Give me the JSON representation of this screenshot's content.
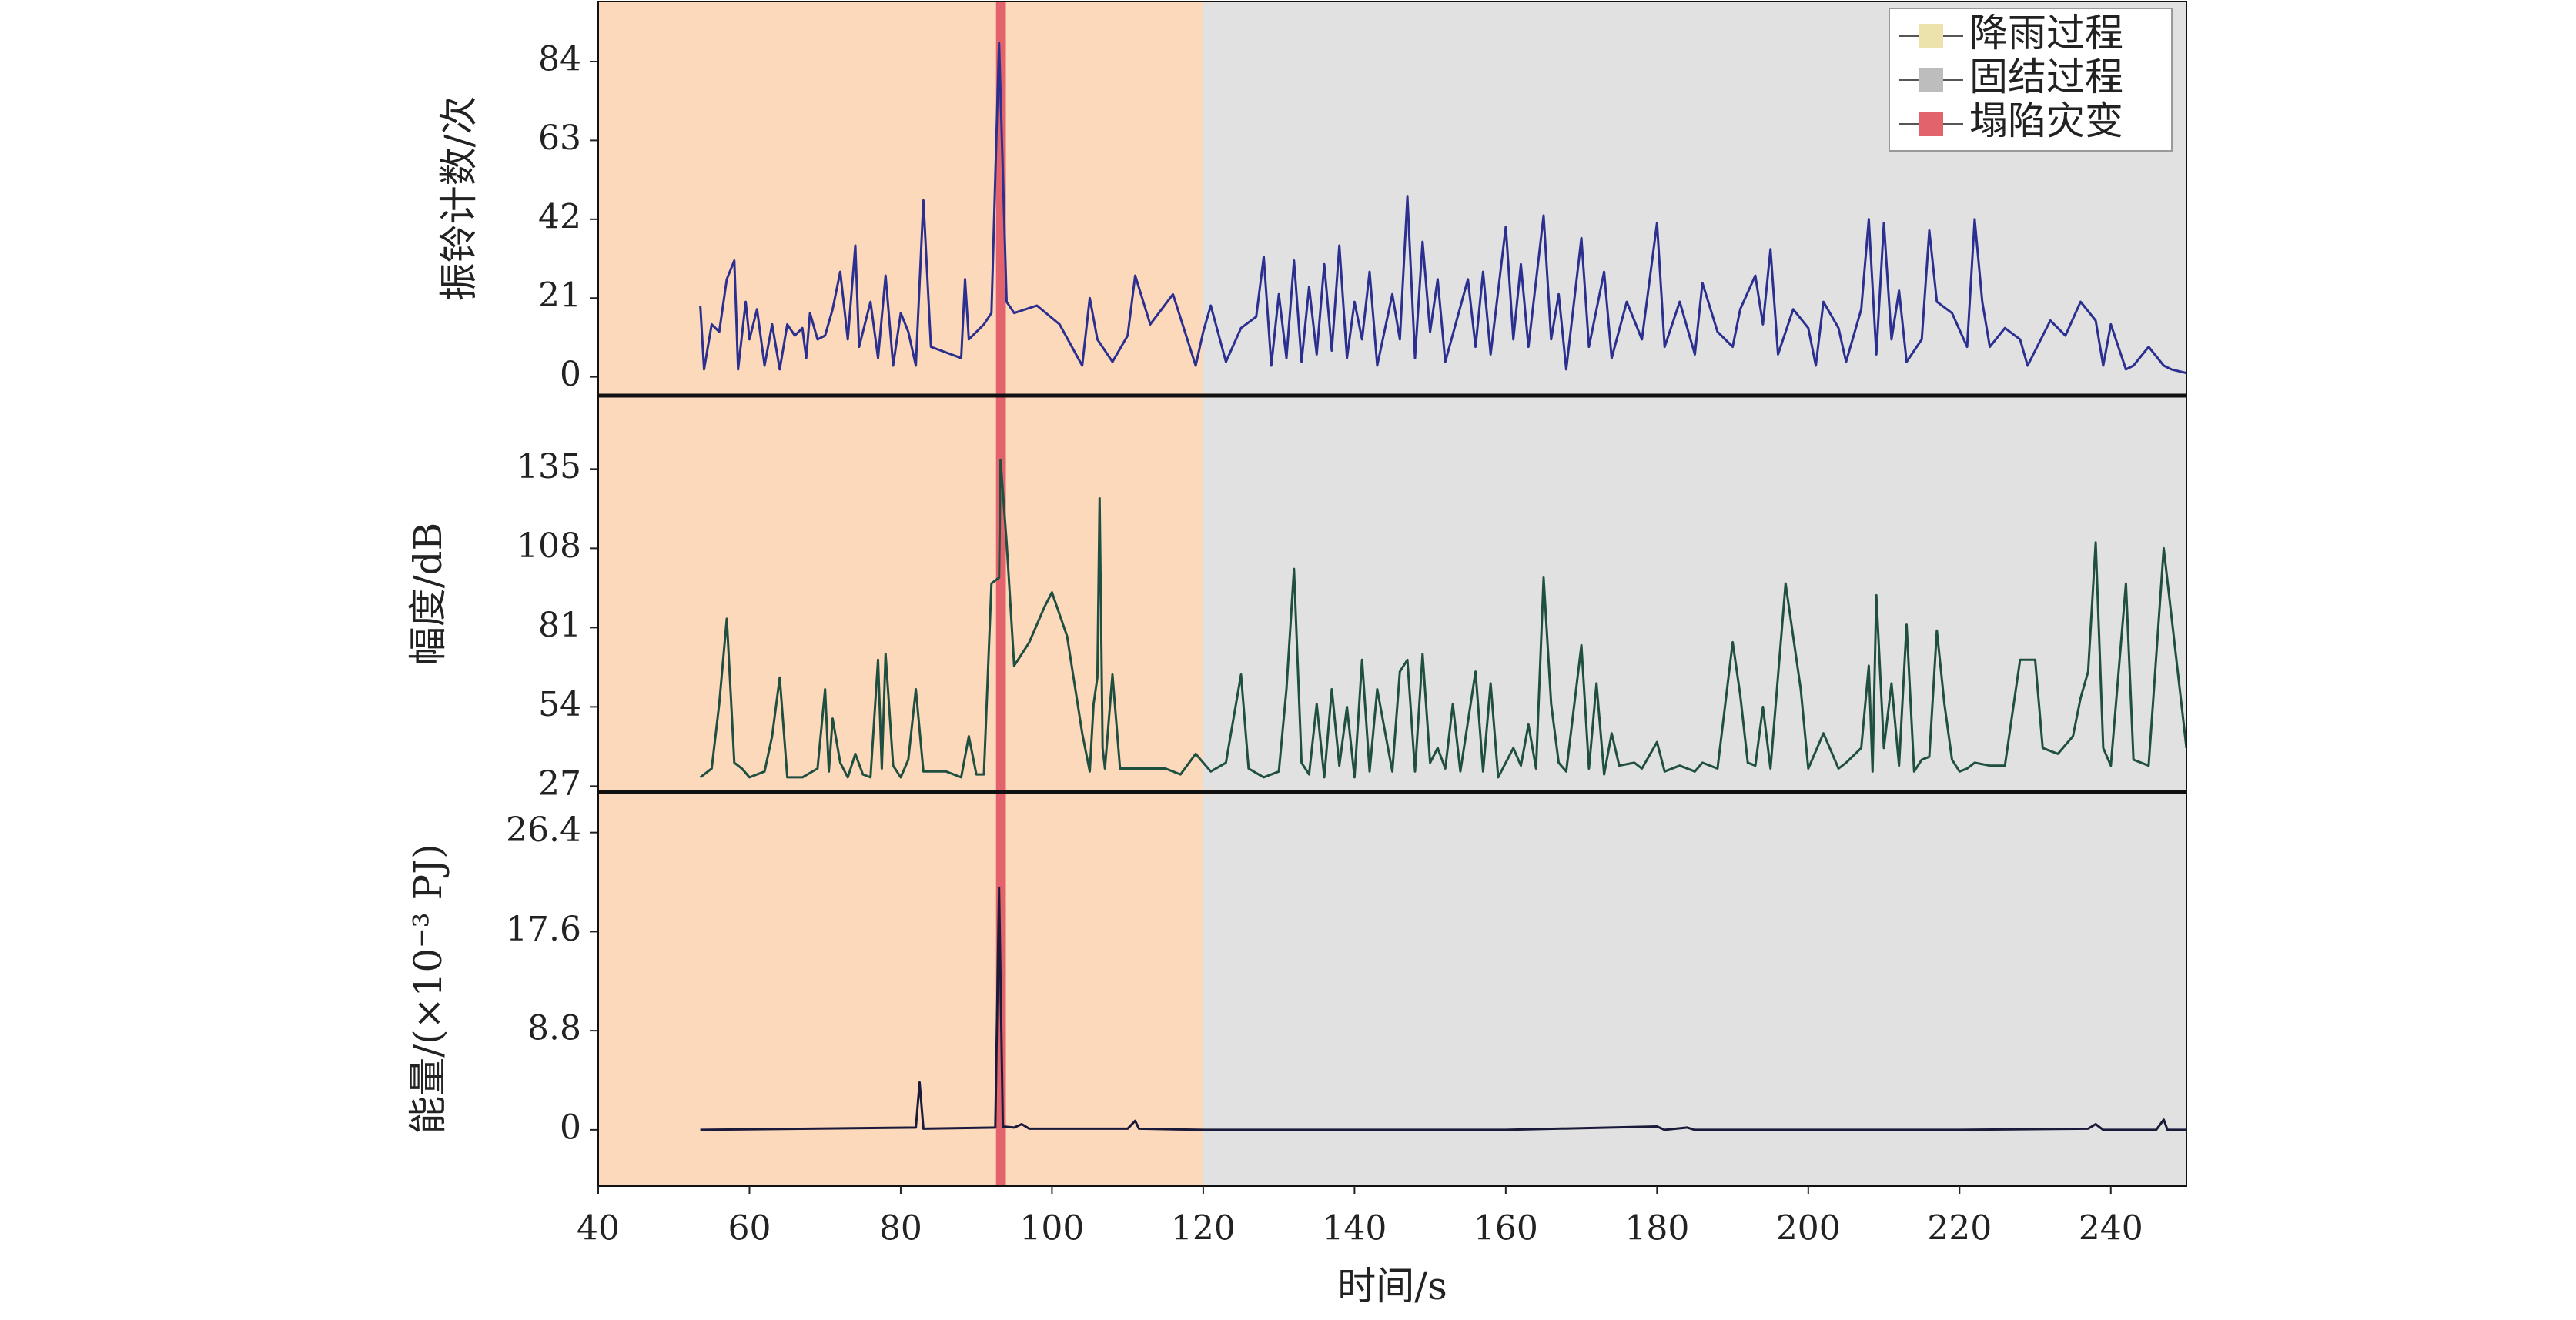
{
  "chart_data": [
    {
      "type": "line",
      "ylabel": "振铃计数/次",
      "xlim": [
        40,
        250
      ],
      "ylim": [
        -5,
        100
      ],
      "yticks": [
        0,
        21,
        42,
        63,
        84
      ],
      "spans": [
        {
          "name": "降雨过程",
          "range": [
            40,
            120
          ],
          "color": "#fdd9bb",
          "legend_color": "#ece3ac"
        },
        {
          "name": "固结过程",
          "range": [
            120,
            250
          ],
          "color": "#e1e1e1",
          "legend_color": "#bdbdbd"
        },
        {
          "name": "塌陷灾变",
          "range": [
            92.6,
            93.9
          ],
          "color": "#e2636b",
          "legend_color": "#e2636b"
        }
      ],
      "legend": "upper right",
      "x": [
        53.5,
        54,
        55,
        56,
        57,
        58,
        58.5,
        59.5,
        60,
        61,
        62,
        63,
        64,
        65,
        66,
        67,
        67.5,
        68,
        69,
        70,
        71,
        72,
        73,
        74,
        74.5,
        76,
        77,
        78,
        79,
        80,
        81,
        82,
        83,
        84,
        88,
        88.5,
        89,
        91,
        92,
        93,
        94,
        95,
        98,
        101,
        104,
        105,
        106,
        108,
        110,
        111,
        113,
        116,
        119,
        120,
        121,
        123,
        125,
        127,
        128,
        129,
        130,
        131,
        132,
        133,
        134,
        135,
        136,
        137,
        138,
        139,
        140,
        141,
        142,
        143,
        145,
        146,
        147,
        148,
        149,
        150,
        151,
        152,
        155,
        156,
        157,
        158,
        160,
        161,
        162,
        163,
        165,
        166,
        167,
        168,
        170,
        171,
        173,
        174,
        176,
        178,
        180,
        181,
        183,
        185,
        186,
        188,
        190,
        191,
        193,
        194,
        195,
        196,
        198,
        200,
        201,
        202,
        204,
        205,
        207,
        208,
        209,
        210,
        211,
        212,
        213,
        215,
        216,
        217,
        219,
        221,
        222,
        223,
        224,
        226,
        228,
        229,
        232,
        234,
        236,
        238,
        239,
        240,
        242,
        243,
        245,
        247,
        248,
        250
      ],
      "series": [
        {
          "color": "#2b2f8f",
          "values": [
            19,
            2,
            14,
            12,
            26,
            31,
            2,
            20,
            10,
            18,
            3,
            14,
            2,
            14,
            11,
            13,
            5,
            17,
            10,
            11,
            18,
            28,
            10,
            35,
            8,
            20,
            5,
            27,
            3,
            17,
            12,
            3,
            47,
            8,
            5,
            26,
            10,
            14,
            17,
            89,
            20,
            17,
            19,
            14,
            3,
            21,
            10,
            4,
            11,
            27,
            14,
            22,
            3,
            12,
            19,
            4,
            13,
            16,
            32,
            3,
            22,
            5,
            31,
            4,
            24,
            6,
            30,
            7,
            35,
            5,
            20,
            10,
            28,
            3,
            22,
            10,
            48,
            5,
            36,
            12,
            26,
            4,
            26,
            8,
            28,
            6,
            40,
            10,
            30,
            8,
            43,
            10,
            22,
            2,
            37,
            8,
            28,
            5,
            20,
            10,
            41,
            8,
            20,
            6,
            25,
            12,
            8,
            18,
            27,
            14,
            34,
            6,
            18,
            13,
            3,
            20,
            13,
            4,
            18,
            42,
            6,
            41,
            10,
            23,
            4,
            10,
            39,
            20,
            17,
            8,
            42,
            20,
            8,
            13,
            10,
            3,
            15,
            11,
            20,
            15,
            3,
            14,
            2,
            3,
            8,
            3,
            2,
            1
          ]
        }
      ]
    },
    {
      "type": "line",
      "ylabel": "幅度/dB",
      "xlim": [
        40,
        250
      ],
      "ylim": [
        25,
        160
      ],
      "yticks": [
        27,
        54,
        81,
        108,
        135
      ],
      "x": [
        53.5,
        55,
        56,
        57,
        58,
        59,
        60,
        62,
        63,
        64,
        65,
        67,
        69,
        70,
        70.5,
        71,
        72,
        73,
        74,
        75,
        76,
        77,
        77.5,
        78,
        79,
        80,
        81,
        82,
        83,
        86,
        88,
        89,
        90,
        91,
        92,
        93,
        93.2,
        94,
        95,
        97,
        99,
        100,
        102,
        104,
        105,
        105.5,
        106,
        106.3,
        106.7,
        107,
        108,
        109,
        112,
        115,
        117,
        119,
        121,
        123,
        125,
        126,
        128,
        130,
        131,
        132,
        133,
        134,
        135,
        136,
        137,
        138,
        139,
        140,
        141,
        142,
        143,
        145,
        146,
        147,
        148,
        149,
        150,
        151,
        152,
        153,
        154,
        156,
        157,
        158,
        159,
        161,
        162,
        163,
        164,
        165,
        166,
        167,
        168,
        170,
        171,
        172,
        173,
        174,
        175,
        177,
        178,
        180,
        181,
        183,
        185,
        186,
        188,
        190,
        191,
        192,
        193,
        194,
        195,
        197,
        199,
        200,
        202,
        204,
        205,
        207,
        208,
        208.5,
        209,
        210,
        211,
        212,
        213,
        214,
        215,
        216,
        217,
        218,
        219,
        220,
        221,
        222,
        224,
        226,
        228,
        230,
        231,
        233,
        235,
        236,
        237,
        238,
        239,
        240,
        242,
        243,
        245,
        247,
        250
      ],
      "series": [
        {
          "color": "#1f4f40",
          "values": [
            30,
            33,
            55,
            84,
            35,
            33,
            30,
            32,
            44,
            64,
            30,
            30,
            33,
            60,
            32,
            50,
            35,
            30,
            38,
            31,
            30,
            70,
            33,
            72,
            34,
            30,
            36,
            60,
            32,
            32,
            30,
            44,
            31,
            31,
            96,
            98,
            138,
            110,
            68,
            76,
            88,
            93,
            78,
            45,
            32,
            55,
            64,
            125,
            40,
            33,
            65,
            33,
            33,
            33,
            31,
            38,
            32,
            35,
            65,
            33,
            30,
            32,
            60,
            101,
            35,
            31,
            55,
            30,
            60,
            34,
            54,
            30,
            70,
            32,
            60,
            32,
            66,
            70,
            32,
            72,
            35,
            40,
            33,
            55,
            32,
            66,
            32,
            62,
            30,
            40,
            34,
            48,
            33,
            98,
            55,
            35,
            32,
            75,
            33,
            62,
            31,
            45,
            34,
            35,
            33,
            42,
            32,
            34,
            32,
            35,
            33,
            76,
            58,
            35,
            34,
            54,
            33,
            96,
            60,
            33,
            45,
            33,
            35,
            40,
            68,
            32,
            92,
            40,
            62,
            34,
            82,
            32,
            36,
            37,
            80,
            55,
            36,
            32,
            33,
            35,
            34,
            34,
            70,
            70,
            40,
            38,
            44,
            57,
            66,
            110,
            40,
            34,
            96,
            36,
            34,
            108,
            40
          ]
        }
      ]
    },
    {
      "type": "line",
      "ylabel": "能量/(×10⁻³ PJ)",
      "xlabel": "时间/s",
      "xlim": [
        40,
        250
      ],
      "ylim": [
        -5,
        30
      ],
      "yticks": [
        0,
        8.8,
        17.6,
        26.4
      ],
      "xticks": [
        40,
        60,
        80,
        100,
        120,
        140,
        160,
        180,
        200,
        220,
        240
      ],
      "x": [
        53.5,
        82,
        82.5,
        83,
        92.5,
        93,
        93.5,
        95,
        96,
        97,
        110,
        111,
        111.5,
        120,
        140,
        160,
        180,
        181,
        184,
        185,
        200,
        220,
        237,
        238,
        239,
        246,
        247,
        247.5,
        250
      ],
      "series": [
        {
          "color": "#1a1a3a",
          "values": [
            0,
            0.2,
            4.2,
            0.1,
            0.2,
            21.5,
            0.3,
            0.2,
            0.5,
            0.1,
            0.1,
            0.8,
            0.1,
            0,
            0,
            0,
            0.3,
            0,
            0.2,
            0,
            0,
            0,
            0.1,
            0.5,
            0,
            0,
            0.9,
            0,
            0
          ]
        }
      ]
    }
  ]
}
